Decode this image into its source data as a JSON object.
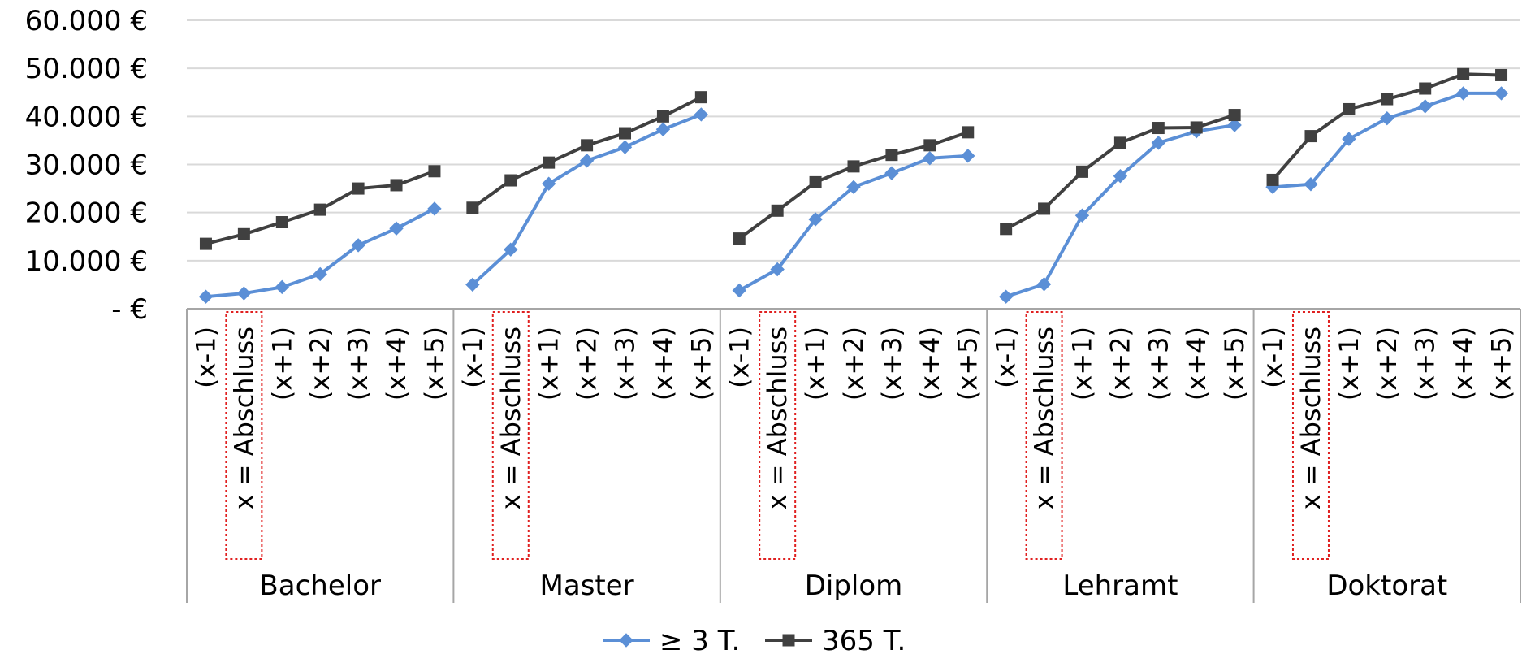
{
  "chart_data": {
    "type": "line",
    "yticks": [
      "60.000 €",
      "50.000 €",
      "40.000 €",
      "30.000 €",
      "20.000 €",
      "10.000 €",
      "- €"
    ],
    "ylim": [
      0,
      60000
    ],
    "grid": true,
    "legend_position": "bottom",
    "groups": [
      "Bachelor",
      "Master",
      "Diplom",
      "Lehramt",
      "Doktorat"
    ],
    "categories": [
      "(x-1)",
      "x = Abschluss",
      "(x+1)",
      "(x+2)",
      "(x+3)",
      "(x+4)",
      "(x+5)"
    ],
    "highlighted_category": "x = Abschluss",
    "series": [
      {
        "name": "≥ 3 T.",
        "color": "#5b8fd6",
        "marker": "diamond",
        "values": [
          [
            2500,
            3200,
            4500,
            7200,
            13200,
            16700,
            20800
          ],
          [
            5000,
            12300,
            26000,
            30800,
            33600,
            37300,
            40400
          ],
          [
            3800,
            8200,
            18600,
            25300,
            28200,
            31300,
            31800
          ],
          [
            2500,
            5100,
            19400,
            27600,
            34500,
            36900,
            38200
          ],
          [
            25300,
            25900,
            35300,
            39600,
            42100,
            44800,
            44800
          ]
        ]
      },
      {
        "name": "365 T.",
        "color": "#404040",
        "marker": "square",
        "values": [
          [
            13500,
            15500,
            18000,
            20600,
            25000,
            25700,
            28600
          ],
          [
            21000,
            26700,
            30400,
            34000,
            36500,
            40000,
            44000
          ],
          [
            14600,
            20400,
            26300,
            29600,
            32000,
            34000,
            36700
          ],
          [
            16600,
            20800,
            28500,
            34500,
            37600,
            37700,
            40300
          ],
          [
            26800,
            35900,
            41500,
            43600,
            45800,
            48800,
            48600
          ]
        ]
      }
    ]
  }
}
